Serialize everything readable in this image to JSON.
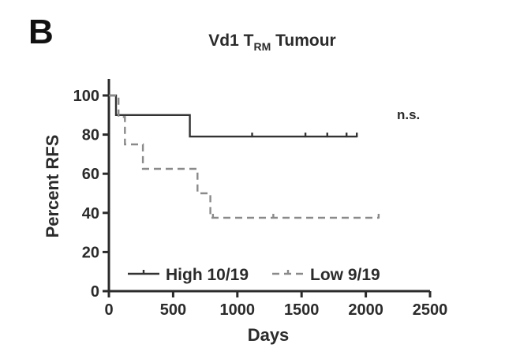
{
  "panel_label": "B",
  "chart_data": {
    "type": "line",
    "title": "Vd1 T",
    "title_subscript": "RM",
    "title_suffix": " Tumour",
    "xlabel": "Days",
    "ylabel": "Percent RFS",
    "xlim": [
      0,
      2500
    ],
    "ylim": [
      0,
      100
    ],
    "x_ticks": [
      0,
      500,
      1000,
      1500,
      2000,
      2500
    ],
    "y_ticks": [
      0,
      20,
      40,
      60,
      80,
      100
    ],
    "annotation": "n.s.",
    "legend_position": "bottom",
    "series": [
      {
        "name": "High 10/19",
        "color": "#333333",
        "style": "solid",
        "steps": [
          [
            0,
            100
          ],
          [
            55,
            100
          ],
          [
            55,
            90
          ],
          [
            630,
            90
          ],
          [
            630,
            79
          ],
          [
            1930,
            79
          ]
        ],
        "censored": [
          [
            1115,
            79
          ],
          [
            1530,
            79
          ],
          [
            1700,
            79
          ],
          [
            1850,
            79
          ],
          [
            1930,
            79
          ]
        ]
      },
      {
        "name": "Low 9/19",
        "color": "#8a8a8a",
        "style": "dashed",
        "steps": [
          [
            0,
            100
          ],
          [
            75,
            100
          ],
          [
            75,
            89
          ],
          [
            125,
            89
          ],
          [
            125,
            75
          ],
          [
            265,
            75
          ],
          [
            265,
            62.5
          ],
          [
            690,
            62.5
          ],
          [
            690,
            50
          ],
          [
            790,
            50
          ],
          [
            790,
            37.5
          ],
          [
            2100,
            37.5
          ]
        ],
        "censored": [
          [
            810,
            37.5
          ],
          [
            1280,
            37.5
          ],
          [
            2100,
            37.5
          ]
        ]
      }
    ]
  }
}
